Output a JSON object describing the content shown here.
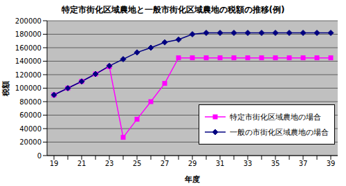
{
  "chart_data": {
    "type": "line",
    "title": "特定市街化区域農地と一般市街化区域農地の税額の推移(例)",
    "x_label": "年度",
    "y_label": "税額",
    "categories": [
      19,
      null,
      21,
      null,
      23,
      null,
      25,
      null,
      27,
      null,
      29,
      null,
      31,
      null,
      33,
      null,
      35,
      null,
      37,
      null,
      39
    ],
    "series": [
      {
        "name": "特定市街化区域農地の場合",
        "color": "#ff00ff",
        "marker": "square",
        "values": [
          90000,
          100000,
          110000,
          121000,
          132000,
          27000,
          54000,
          80000,
          107000,
          145000,
          145000,
          145000,
          145000,
          145000,
          145000,
          145000,
          145000,
          145000,
          145000,
          145000,
          145000
        ]
      },
      {
        "name": "一般の市街化区域農地の場合",
        "color": "#000080",
        "marker": "diamond",
        "values": [
          90000,
          100000,
          110000,
          121000,
          133000,
          143000,
          153000,
          160000,
          168000,
          172000,
          180000,
          182000,
          182000,
          182000,
          182000,
          182000,
          182000,
          182000,
          182000,
          182000,
          182000
        ]
      }
    ],
    "ylim": [
      0,
      200000
    ],
    "yticks": [
      0,
      20000,
      40000,
      60000,
      80000,
      100000,
      120000,
      140000,
      160000,
      180000,
      200000
    ],
    "grid": true,
    "legend": "lower right"
  }
}
